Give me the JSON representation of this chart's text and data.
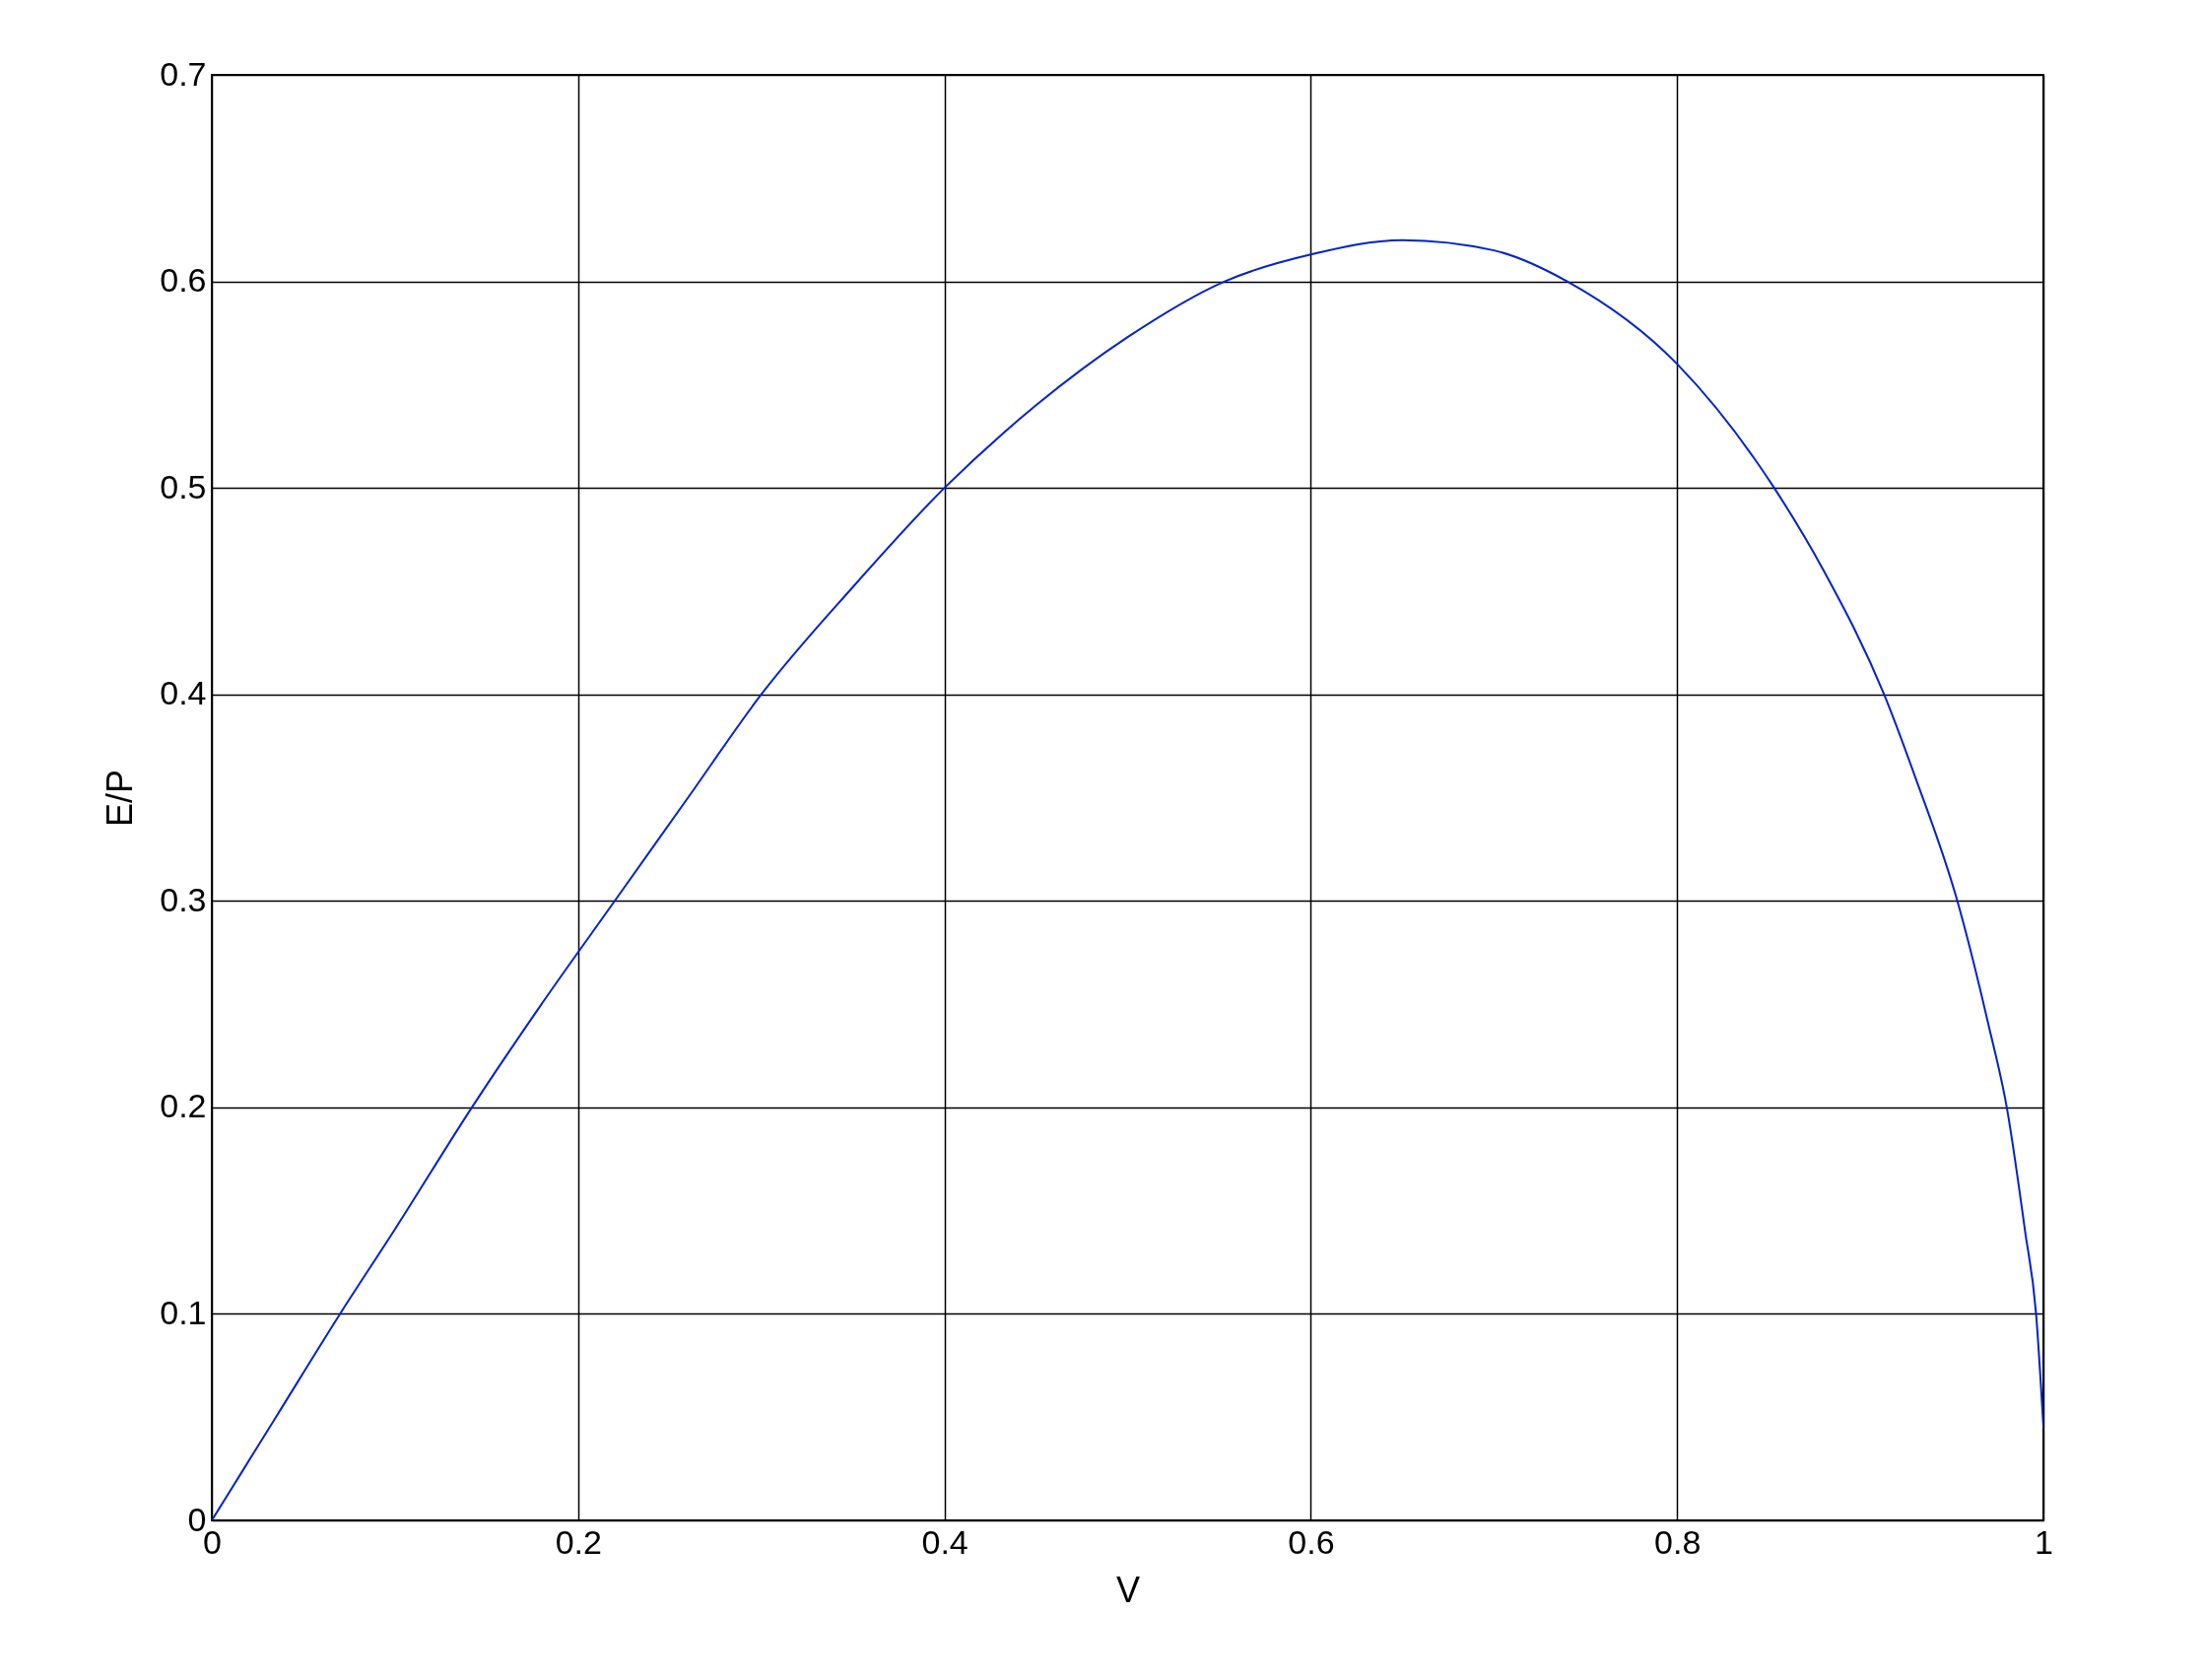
{
  "chart_data": {
    "type": "line",
    "xlabel": "V",
    "ylabel": "E/P",
    "xlim": [
      0,
      1
    ],
    "ylim": [
      0,
      0.7
    ],
    "xticks": [
      0,
      0.2,
      0.4,
      0.6,
      0.8,
      1
    ],
    "yticks": [
      0,
      0.1,
      0.2,
      0.3,
      0.4,
      0.5,
      0.6,
      0.7
    ],
    "grid": true,
    "series": [
      {
        "color": "#0022cc",
        "x": [
          0,
          0.035,
          0.07,
          0.1,
          0.142,
          0.18,
          0.22,
          0.26,
          0.3,
          0.35,
          0.4,
          0.45,
          0.5,
          0.553,
          0.6,
          0.65,
          0.7,
          0.74,
          0.8,
          0.853,
          0.88,
          0.913,
          0.93,
          0.953,
          0.97,
          0.98,
          0.99,
          0.996,
          1.0
        ],
        "values": [
          0,
          0.05,
          0.1,
          0.141,
          0.2,
          0.25,
          0.3,
          0.35,
          0.4,
          0.452,
          0.5,
          0.54,
          0.573,
          0.6,
          0.613,
          0.62,
          0.615,
          0.6,
          0.56,
          0.5,
          0.46,
          0.4,
          0.36,
          0.3,
          0.24,
          0.2,
          0.14,
          0.1,
          0.045
        ]
      }
    ]
  }
}
